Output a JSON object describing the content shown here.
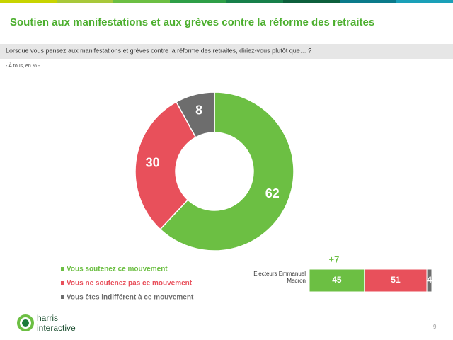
{
  "title": "Soutien aux manifestations et aux grèves contre la réforme des retraites",
  "question": "Lorsque vous pensez aux manifestations et grèves contre la réforme des retraites, diriez-vous plutôt que… ?",
  "note": "- À tous, en % -",
  "logo": [
    "harris",
    "interactive"
  ],
  "page_number": "9",
  "chart_data": [
    {
      "type": "donut",
      "categories": [
        "Vous soutenez ce mouvement",
        "Vous ne soutenez pas ce mouvement",
        "Vous êtes indifférent à ce mouvement"
      ],
      "values": [
        62,
        30,
        8
      ],
      "colors": [
        "#6cbf43",
        "#e8505b",
        "#6d6d6d"
      ]
    },
    {
      "type": "stacked-bar",
      "categories": [
        "Electeurs Emmanuel Macron"
      ],
      "annotation": "+7",
      "xlim": [
        0,
        100
      ],
      "series": [
        {
          "color": "#6cbf43",
          "values": [
            45
          ]
        },
        {
          "color": "#e8505b",
          "values": [
            51
          ]
        },
        {
          "color": "#6d6d6d",
          "values": [
            4
          ]
        }
      ]
    }
  ]
}
